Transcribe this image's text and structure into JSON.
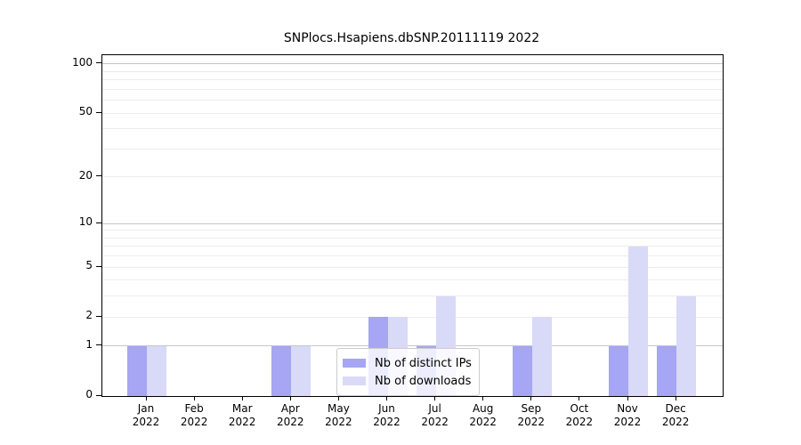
{
  "chart_data": {
    "type": "bar",
    "title": "SNPlocs.Hsapiens.dbSNP.20111119 2022",
    "x_months": [
      "Jan",
      "Feb",
      "Mar",
      "Apr",
      "May",
      "Jun",
      "Jul",
      "Aug",
      "Sep",
      "Oct",
      "Nov",
      "Dec"
    ],
    "x_year": "2022",
    "series": [
      {
        "name": "Nb of distinct IPs",
        "color": "#a6a6f4",
        "values": [
          1,
          0,
          0,
          1,
          0,
          2,
          1,
          0,
          1,
          0,
          1,
          1
        ]
      },
      {
        "name": "Nb of downloads",
        "color": "#d9d9f8",
        "values": [
          1,
          0,
          0,
          1,
          0,
          2,
          3,
          0,
          2,
          0,
          7,
          3
        ]
      }
    ],
    "yscale": "log1p",
    "ylim": [
      0,
      112
    ],
    "yticks": [
      0,
      1,
      2,
      5,
      10,
      20,
      50,
      100
    ],
    "grid_major_values": [
      1,
      10,
      100
    ],
    "grid_minor_values": [
      2,
      3,
      4,
      5,
      6,
      7,
      8,
      9,
      20,
      30,
      40,
      50,
      60,
      70,
      80,
      90
    ],
    "legend_position": "bottom-center",
    "colors": {
      "grid_minor": "#ececec",
      "grid_major": "#c6c6c6",
      "axis": "#000000"
    }
  }
}
